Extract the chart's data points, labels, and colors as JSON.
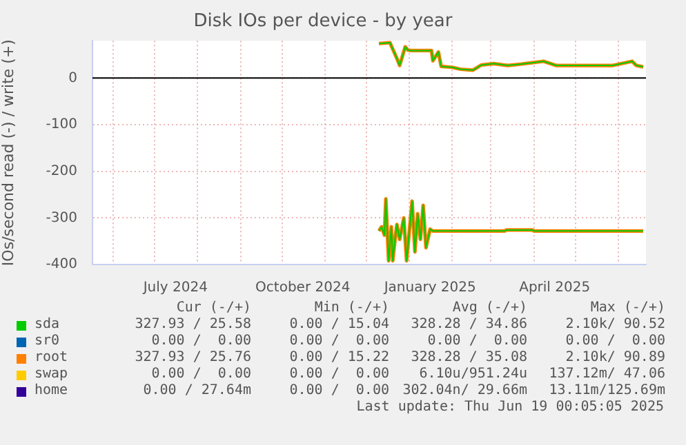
{
  "chart_data": {
    "type": "line",
    "title": "Disk IOs per device - by year",
    "ylabel": "IOs/second read (-) / write (+)",
    "xlim": [
      "2024-05-17",
      "2025-06-21"
    ],
    "xticks": [
      {
        "value": "2024-06-01",
        "label": null
      },
      {
        "value": "2024-07-01",
        "label": null
      },
      {
        "value": "2024-07-16",
        "label": "July 2024"
      },
      {
        "value": "2024-08-01",
        "label": null
      },
      {
        "value": "2024-09-01",
        "label": null
      },
      {
        "value": "2024-10-01",
        "label": null
      },
      {
        "value": "2024-10-16",
        "label": "October 2024"
      },
      {
        "value": "2024-11-01",
        "label": null
      },
      {
        "value": "2024-12-01",
        "label": null
      },
      {
        "value": "2025-01-01",
        "label": null
      },
      {
        "value": "2025-01-16",
        "label": "January 2025"
      },
      {
        "value": "2025-02-01",
        "label": null
      },
      {
        "value": "2025-03-01",
        "label": null
      },
      {
        "value": "2025-04-01",
        "label": null
      },
      {
        "value": "2025-04-16",
        "label": "April 2025"
      },
      {
        "value": "2025-05-01",
        "label": null
      },
      {
        "value": "2025-06-01",
        "label": null
      }
    ],
    "ylim": [
      -400,
      80
    ],
    "yticks": [
      -400,
      -300,
      -200,
      -100,
      0
    ],
    "grid": true,
    "legend": "bottom",
    "marker": "none",
    "line_style": "solid",
    "ref_lines": [
      {
        "axis": "y",
        "value": 0,
        "color": "#000000"
      }
    ],
    "series": [
      {
        "color": "#00cc00",
        "x": [
          "2024-12-10",
          "2024-12-12",
          "2024-12-14",
          "2024-12-15",
          "2024-12-17",
          "2024-12-19",
          "2024-12-20",
          "2024-12-22",
          "2024-12-23",
          "2024-12-25",
          "2024-12-28",
          "2024-12-30",
          "2025-01-01",
          "2025-01-03",
          "2025-01-05",
          "2025-01-07",
          "2025-01-09",
          "2025-01-11",
          "2025-01-13",
          "2025-01-16",
          "2025-01-18",
          "2025-03-11",
          "2025-03-12",
          "2025-03-31",
          "2025-04-01",
          "2025-06-19"
        ],
        "values": [
          -328,
          -319,
          -337,
          -259,
          -392,
          -319,
          -392,
          -337,
          -314,
          -346,
          -300,
          -392,
          -328,
          -264,
          -373,
          -291,
          -346,
          -273,
          -364,
          -324,
          -328,
          -328,
          -326,
          -326,
          -328,
          -328
        ]
      },
      {
        "name": "sda",
        "color": "#00cc00",
        "x": [
          "2024-12-10",
          "2024-12-18",
          "2024-12-19",
          "2024-12-23",
          "2024-12-25",
          "2024-12-29",
          "2024-12-31",
          "2025-01-02",
          "2025-01-17",
          "2025-01-18",
          "2025-01-22",
          "2025-01-24",
          "2025-02-01",
          "2025-02-07",
          "2025-02-16",
          "2025-02-22",
          "2025-03-03",
          "2025-03-13",
          "2025-03-23",
          "2025-04-08",
          "2025-04-17",
          "2025-05-05",
          "2025-05-28",
          "2025-06-11",
          "2025-06-14",
          "2025-06-19"
        ],
        "values": [
          74,
          76,
          69,
          42,
          27,
          67,
          60,
          59,
          59,
          37,
          56,
          25,
          23,
          19,
          17,
          28,
          31,
          27,
          30,
          36,
          27,
          27,
          27,
          36,
          27,
          24
        ]
      },
      {
        "name": "sr0",
        "color": "#0066b3"
      },
      {
        "color": "#ff8000",
        "x": [
          "2024-12-10",
          "2024-12-12",
          "2024-12-14",
          "2024-12-15",
          "2024-12-17",
          "2024-12-19",
          "2024-12-20",
          "2024-12-22",
          "2024-12-23",
          "2024-12-25",
          "2024-12-28",
          "2024-12-30",
          "2025-01-01",
          "2025-01-03",
          "2025-01-05",
          "2025-01-07",
          "2025-01-09",
          "2025-01-11",
          "2025-01-13",
          "2025-01-16",
          "2025-01-18",
          "2025-03-11",
          "2025-03-12",
          "2025-03-31",
          "2025-04-01",
          "2025-06-19"
        ],
        "values": [
          -328,
          -319,
          -337,
          -259,
          -392,
          -319,
          -392,
          -337,
          -314,
          -346,
          -300,
          -392,
          -328,
          -264,
          -373,
          -291,
          -346,
          -273,
          -364,
          -324,
          -328,
          -328,
          -326,
          -326,
          -328,
          -328
        ]
      },
      {
        "name": "root",
        "color": "#ff8000",
        "x": [
          "2024-12-10",
          "2024-12-18",
          "2024-12-19",
          "2024-12-23",
          "2024-12-25",
          "2024-12-29",
          "2024-12-31",
          "2025-01-02",
          "2025-01-17",
          "2025-01-18",
          "2025-01-22",
          "2025-01-24",
          "2025-02-01",
          "2025-02-07",
          "2025-02-16",
          "2025-02-22",
          "2025-03-03",
          "2025-03-13",
          "2025-03-23",
          "2025-04-08",
          "2025-04-17",
          "2025-05-05",
          "2025-05-28",
          "2025-06-11",
          "2025-06-14",
          "2025-06-19"
        ],
        "values": [
          74,
          76,
          69,
          42,
          27,
          67,
          60,
          59,
          59,
          37,
          56,
          25,
          23,
          19,
          17,
          28,
          31,
          27,
          30,
          36,
          27,
          27,
          27,
          36,
          27,
          24
        ]
      },
      {
        "name": "swap",
        "color": "#ffcc00"
      },
      {
        "name": "home",
        "color": "#330099"
      }
    ],
    "annotations": [
      "Cur (-/+)",
      "Min (-/+)",
      "Avg (-/+)",
      "Max (-/+)",
      "327.93 / 25.58",
      "0.00 / 15.04",
      "328.28 / 34.86",
      "2.10k/ 90.52",
      "0.00 /  0.00",
      "0.00 /  0.00",
      "0.00 /  0.00",
      "0.00 /  0.00",
      "327.93 / 25.76",
      "0.00 / 15.22",
      "328.28 / 35.08",
      "2.10k/ 90.89",
      "0.00 /  0.00",
      "0.00 /  0.00",
      "6.10u/951.24u",
      "137.12m/ 47.06",
      "0.00 / 27.64m",
      "0.00 /  0.00",
      "302.04n/ 29.66m",
      "13.11m/125.69m",
      "Last update: Thu Jun 19 00:05:05 2025"
    ]
  }
}
